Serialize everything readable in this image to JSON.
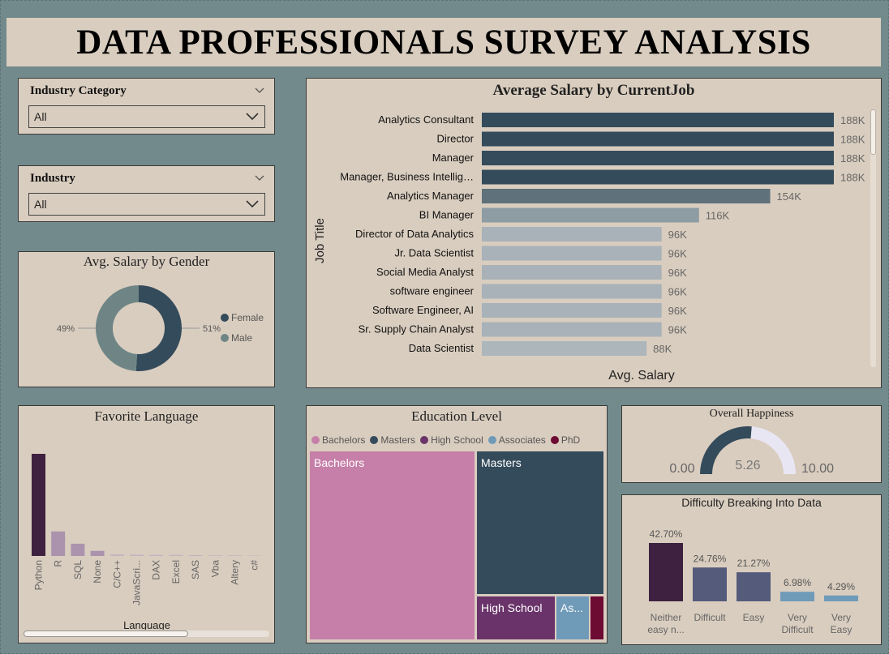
{
  "title": "DATA PROFESSIONALS SURVEY ANALYSIS",
  "slicers": [
    {
      "label": "Industry Category",
      "value": "All"
    },
    {
      "label": "Industry",
      "value": "All"
    }
  ],
  "gender_chart": {
    "title": "Avg. Salary by Gender",
    "type": "donut",
    "legend": [
      {
        "name": "Female",
        "color": "#344b5b"
      },
      {
        "name": "Male",
        "color": "#6f8585"
      }
    ],
    "slices": [
      {
        "name": "Female",
        "value": 51,
        "label": "51%",
        "color": "#344b5b"
      },
      {
        "name": "Male",
        "value": 49,
        "label": "49%",
        "color": "#6f8585"
      }
    ]
  },
  "salary_chart": {
    "title": "Average Salary by CurrentJob",
    "xlabel": "Avg. Salary",
    "ylabel": "Job Title",
    "xmax": 188,
    "bars": [
      {
        "job": "Analytics Consultant",
        "value": 188,
        "label": "188K",
        "color": "#344b5b"
      },
      {
        "job": "Director",
        "value": 188,
        "label": "188K",
        "color": "#344b5b"
      },
      {
        "job": "Manager",
        "value": 188,
        "label": "188K",
        "color": "#344b5b"
      },
      {
        "job": "Manager, Business Intellig…",
        "value": 188,
        "label": "188K",
        "color": "#344b5b"
      },
      {
        "job": "Analytics Manager",
        "value": 154,
        "label": "154K",
        "color": "#5f717b"
      },
      {
        "job": "BI Manager",
        "value": 116,
        "label": "116K",
        "color": "#8e9ca3"
      },
      {
        "job": "Director of Data Analytics",
        "value": 96,
        "label": "96K",
        "color": "#a8b2b8"
      },
      {
        "job": "Jr. Data Scientist",
        "value": 96,
        "label": "96K",
        "color": "#a8b2b8"
      },
      {
        "job": "Social Media Analyst",
        "value": 96,
        "label": "96K",
        "color": "#a8b2b8"
      },
      {
        "job": "software engineer",
        "value": 96,
        "label": "96K",
        "color": "#a8b2b8"
      },
      {
        "job": "Software Engineer, AI",
        "value": 96,
        "label": "96K",
        "color": "#a8b2b8"
      },
      {
        "job": "Sr. Supply Chain Analyst",
        "value": 96,
        "label": "96K",
        "color": "#a8b2b8"
      },
      {
        "job": "Data Scientist",
        "value": 88,
        "label": "88K",
        "color": "#adb6bb"
      }
    ]
  },
  "language_chart": {
    "title": "Favorite Language",
    "xlabel": "Language",
    "categories": [
      "Python",
      "R",
      "SQL",
      "None",
      "C/C++",
      "JavaScri...",
      "DAX",
      "Excel",
      "SAS",
      "Vba",
      "Altery",
      "c#"
    ],
    "values": [
      100,
      24,
      12,
      5,
      1.5,
      1.2,
      1,
      1,
      0.8,
      0.6,
      0.6,
      0.4
    ],
    "colors": [
      "#3e2140",
      "#ab93ad",
      "#ab93ad",
      "#ab93ad",
      "#c3b3c0",
      "#c3b3c0",
      "#c3b3c0",
      "#c3b3c0",
      "#c3b3c0",
      "#c3b3c0",
      "#c3b3c0",
      "#c3b3c0"
    ]
  },
  "education_chart": {
    "title": "Education Level",
    "type": "treemap",
    "legend": [
      {
        "name": "Bachelors",
        "color": "#c67fa8"
      },
      {
        "name": "Masters",
        "color": "#344b5b"
      },
      {
        "name": "High School",
        "color": "#6a346a"
      },
      {
        "name": "Associates",
        "color": "#6f9ab8"
      },
      {
        "name": "PhD",
        "color": "#6d0b33"
      }
    ],
    "cells": [
      {
        "name": "Bachelors",
        "label": "Bachelors",
        "color": "#c67fa8"
      },
      {
        "name": "Masters",
        "label": "Masters",
        "color": "#344b5b"
      },
      {
        "name": "High School",
        "label": "High School",
        "color": "#6a346a"
      },
      {
        "name": "Associates",
        "label": "As...",
        "color": "#6f9ab8"
      },
      {
        "name": "PhD",
        "label": "",
        "color": "#6d0b33"
      }
    ]
  },
  "happiness_gauge": {
    "title": "Overall Happiness",
    "min": 0,
    "max": 10,
    "value": 5.26,
    "min_label": "0.00",
    "max_label": "10.00",
    "value_label": "5.26",
    "fill_color": "#344b5b",
    "track_color": "#e9e6f4"
  },
  "difficulty_chart": {
    "title": "Difficulty Breaking Into Data",
    "bars": [
      {
        "line1": "Neither",
        "line2": "easy n...",
        "value": 42.7,
        "label": "42.70%",
        "color": "#3e2140"
      },
      {
        "line1": "Difficult",
        "line2": "",
        "value": 24.76,
        "label": "24.76%",
        "color": "#555b7a"
      },
      {
        "line1": "Easy",
        "line2": "",
        "value": 21.27,
        "label": "21.27%",
        "color": "#555b7a"
      },
      {
        "line1": "Very",
        "line2": "Difficult",
        "value": 6.98,
        "label": "6.98%",
        "color": "#6f9ab8"
      },
      {
        "line1": "Very",
        "line2": "Easy",
        "value": 4.29,
        "label": "4.29%",
        "color": "#6f9ab8"
      }
    ]
  }
}
